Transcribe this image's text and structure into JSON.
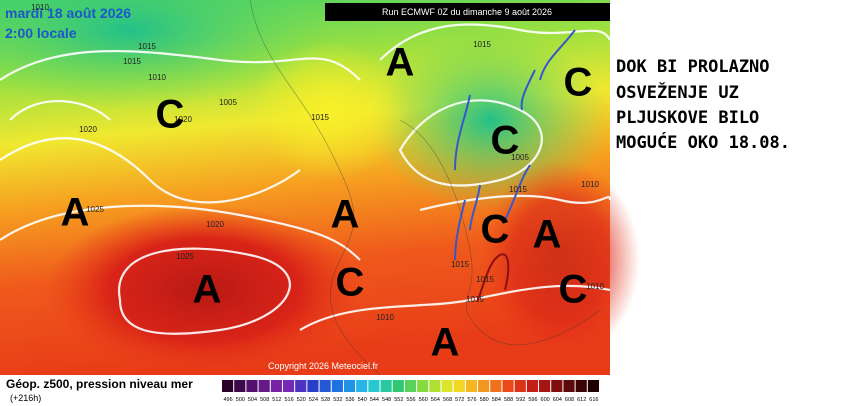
{
  "header": {
    "date": "mardi 18 août 2026",
    "time": "2:00 locale",
    "run": "Run ECMWF 0Z du dimanche 9 août 2026"
  },
  "map": {
    "pressure_labels": [
      "1010",
      "1015",
      "1015",
      "1010",
      "1005",
      "1020",
      "1020",
      "1025",
      "1020",
      "1025",
      "1015",
      "1015",
      "1005",
      "1015",
      "1010",
      "1015",
      "1015",
      "1015",
      "1010",
      "1010"
    ],
    "centers": [
      "A",
      "A",
      "A",
      "A",
      "A",
      "A",
      "C",
      "C",
      "C",
      "C",
      "C",
      "C"
    ],
    "copyright": "Copyright 2026 Meteociel.fr"
  },
  "annotation": {
    "lines": [
      "DOK BI PROLAZNO",
      "OSVEŽENJE UZ",
      "PLJUSKOVE BILO",
      "MOGUĆE OKO 18.08."
    ]
  },
  "legend": {
    "title": "Géop. z500, pression niveau mer",
    "lead_time": "(+216h)",
    "scale": [
      496,
      500,
      504,
      508,
      512,
      516,
      520,
      524,
      528,
      532,
      536,
      540,
      544,
      548,
      552,
      556,
      560,
      564,
      568,
      572,
      576,
      580,
      584,
      588,
      592,
      596,
      600,
      604,
      608,
      612,
      616
    ]
  }
}
